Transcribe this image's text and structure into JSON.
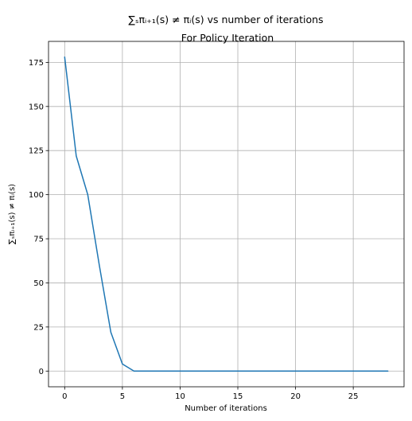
{
  "chart_data": {
    "type": "line",
    "title_line1": "∑ₛπᵢ₊₁(s) ≠ πᵢ(s) vs number of iterations",
    "title_line2": "For Policy Iteration",
    "xlabel": "Number of iterations",
    "ylabel": "∑ₛπᵢ₊₁(s) ≠ πᵢ(s)",
    "xlim": [
      -1.4,
      29.4
    ],
    "ylim": [
      -8.9,
      186.9
    ],
    "xticks": [
      0,
      5,
      10,
      15,
      20,
      25
    ],
    "yticks": [
      0,
      25,
      50,
      75,
      100,
      125,
      150,
      175
    ],
    "grid": true,
    "series": [
      {
        "color": "#1f77b4",
        "x": [
          0,
          1,
          2,
          3,
          4,
          5,
          6,
          7,
          8,
          9,
          10,
          11,
          12,
          13,
          14,
          15,
          16,
          17,
          18,
          19,
          20,
          21,
          22,
          23,
          24,
          25,
          26,
          27,
          28
        ],
        "values": [
          178,
          122,
          100,
          60,
          22,
          4,
          0,
          0,
          0,
          0,
          0,
          0,
          0,
          0,
          0,
          0,
          0,
          0,
          0,
          0,
          0,
          0,
          0,
          0,
          0,
          0,
          0,
          0,
          0
        ]
      }
    ]
  }
}
